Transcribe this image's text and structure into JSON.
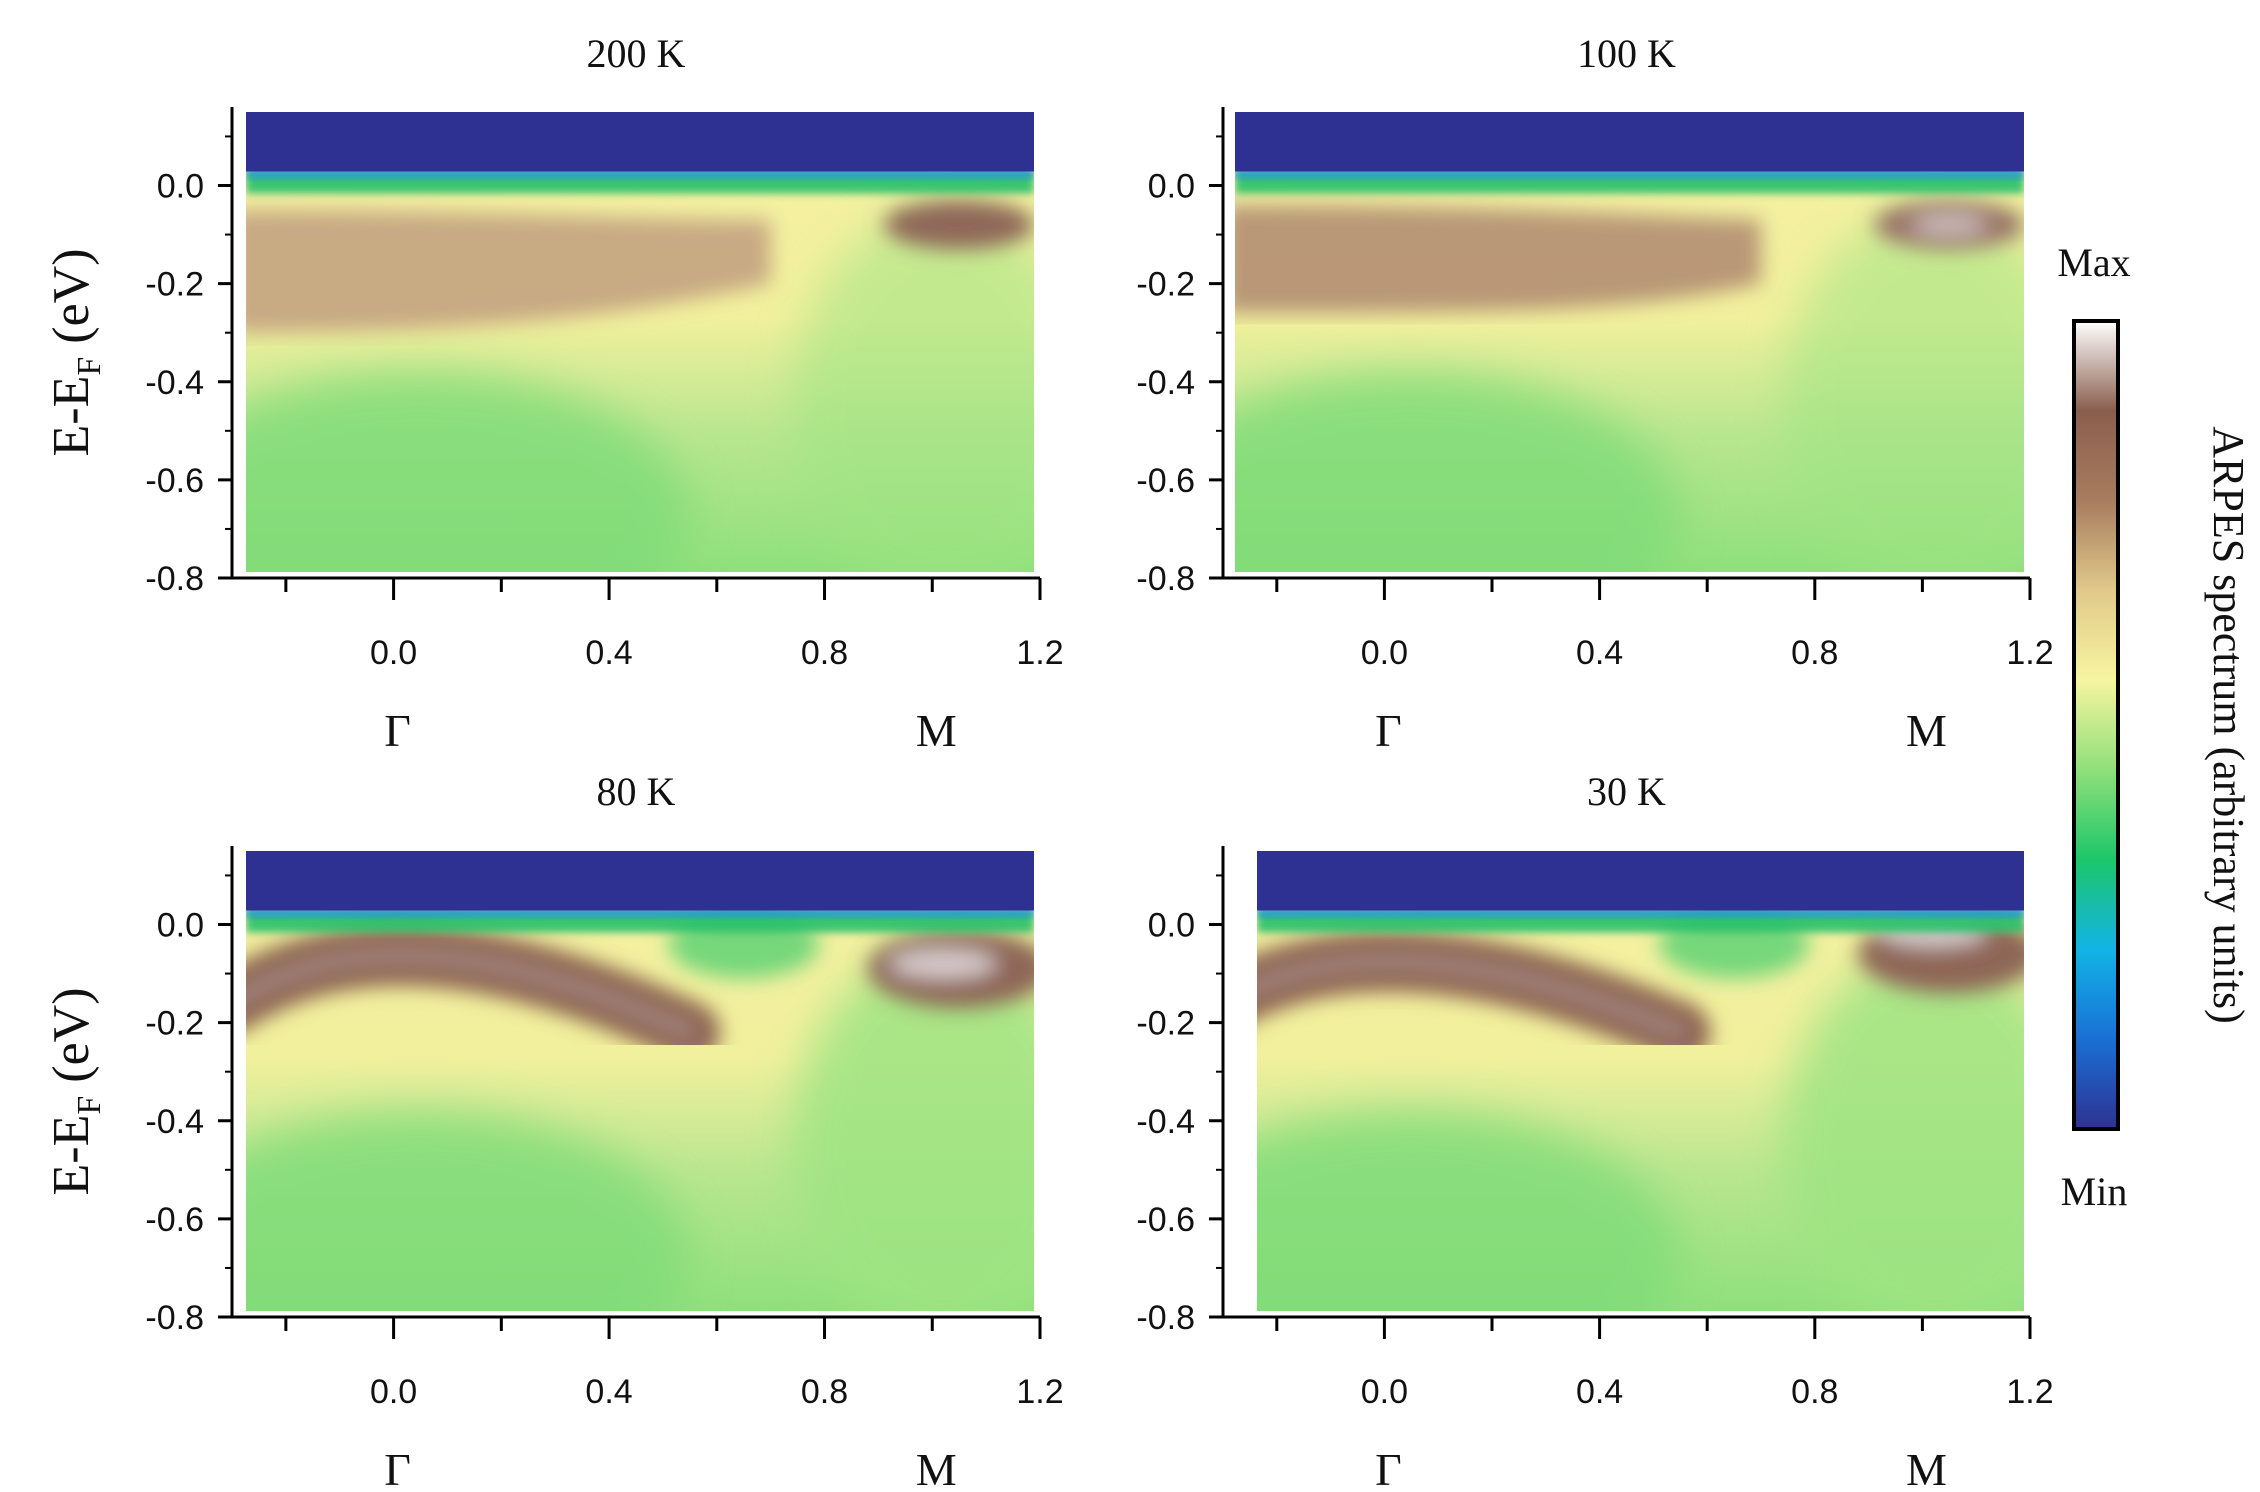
{
  "chart_data": [
    {
      "type": "heatmap",
      "title": "200 K",
      "ylabel": "E-E",
      "ylabel_sub": "F",
      "ylabel_unit": " (eV)",
      "xlim": [
        -0.3,
        1.2
      ],
      "ylim": [
        -0.8,
        0.16
      ],
      "x_ticks": [
        "0.0",
        "0.4",
        "0.8",
        "1.2"
      ],
      "x_tick_values": [
        0.0,
        0.4,
        0.8,
        1.2
      ],
      "y_ticks": [
        "0.0",
        "-0.2",
        "-0.4",
        "-0.6",
        "-0.8"
      ],
      "y_tick_values": [
        0.0,
        -0.2,
        -0.4,
        -0.6,
        -0.8
      ],
      "high_symmetry_points": [
        {
          "label": "Γ",
          "k": 0.0
        },
        {
          "label": "M",
          "k": 1.0
        }
      ],
      "band_description": "weak broad spectral weight near E_F, stronger near M (k≈1.0, E≈-0.07)"
    },
    {
      "type": "heatmap",
      "title": "100 K",
      "ylabel": "",
      "xlim": [
        -0.3,
        1.2
      ],
      "ylim": [
        -0.8,
        0.16
      ],
      "x_ticks": [
        "0.0",
        "0.4",
        "0.8",
        "1.2"
      ],
      "x_tick_values": [
        0.0,
        0.4,
        0.8,
        1.2
      ],
      "y_ticks": [
        "0.0",
        "-0.2",
        "-0.4",
        "-0.6",
        "-0.8"
      ],
      "y_tick_values": [
        0.0,
        -0.2,
        -0.4,
        -0.6,
        -0.8
      ],
      "high_symmetry_points": [
        {
          "label": "Γ",
          "k": 0.0
        },
        {
          "label": "M",
          "k": 1.0
        }
      ],
      "band_description": "broad band centered near E≈-0.1 at Γ, sharper pocket near M (k≈1.05, E≈-0.08)"
    },
    {
      "type": "heatmap",
      "title": "80 K",
      "ylabel": "E-E",
      "ylabel_sub": "F",
      "ylabel_unit": " (eV)",
      "xlim": [
        -0.3,
        1.2
      ],
      "ylim": [
        -0.8,
        0.16
      ],
      "x_ticks": [
        "0.0",
        "0.4",
        "0.8",
        "1.2"
      ],
      "x_tick_values": [
        0.0,
        0.4,
        0.8,
        1.2
      ],
      "y_ticks": [
        "0.0",
        "-0.2",
        "-0.4",
        "-0.6",
        "-0.8"
      ],
      "y_tick_values": [
        0.0,
        -0.2,
        -0.4,
        -0.6,
        -0.8
      ],
      "high_symmetry_points": [
        {
          "label": "Γ",
          "k": 0.0
        },
        {
          "label": "M",
          "k": 1.0
        }
      ],
      "band_description": "hole-like band with top at Γ (E≈-0.06) dispersing to E≈-0.22 at k≈0.5; feature near M at E≈-0.08"
    },
    {
      "type": "heatmap",
      "title": "30 K",
      "ylabel": "",
      "xlim": [
        -0.3,
        1.2
      ],
      "ylim": [
        -0.8,
        0.16
      ],
      "x_ticks": [
        "0.0",
        "0.4",
        "0.8",
        "1.2"
      ],
      "x_tick_values": [
        0.0,
        0.4,
        0.8,
        1.2
      ],
      "y_ticks": [
        "0.0",
        "-0.2",
        "-0.4",
        "-0.6",
        "-0.8"
      ],
      "y_tick_values": [
        0.0,
        -0.2,
        -0.4,
        -0.6,
        -0.8
      ],
      "high_symmetry_points": [
        {
          "label": "Γ",
          "k": 0.0
        },
        {
          "label": "M",
          "k": 1.0
        }
      ],
      "band_description": "sharp hole-like band with top at Γ (E≈-0.08) dispersing to E≈-0.2 at k≈0.5; flat band near M at E≈-0.015"
    }
  ],
  "colorbar": {
    "label": "ARPES spectrum (arbitrary units)",
    "max_label": "Max",
    "min_label": "Min",
    "colors": [
      "#2e3192",
      "#1a6fd4",
      "#12b4e6",
      "#1cc66a",
      "#8fe07a",
      "#f7f5a0",
      "#e0c98a",
      "#a87c5e",
      "#8a5e4e",
      "#ffffff"
    ]
  }
}
